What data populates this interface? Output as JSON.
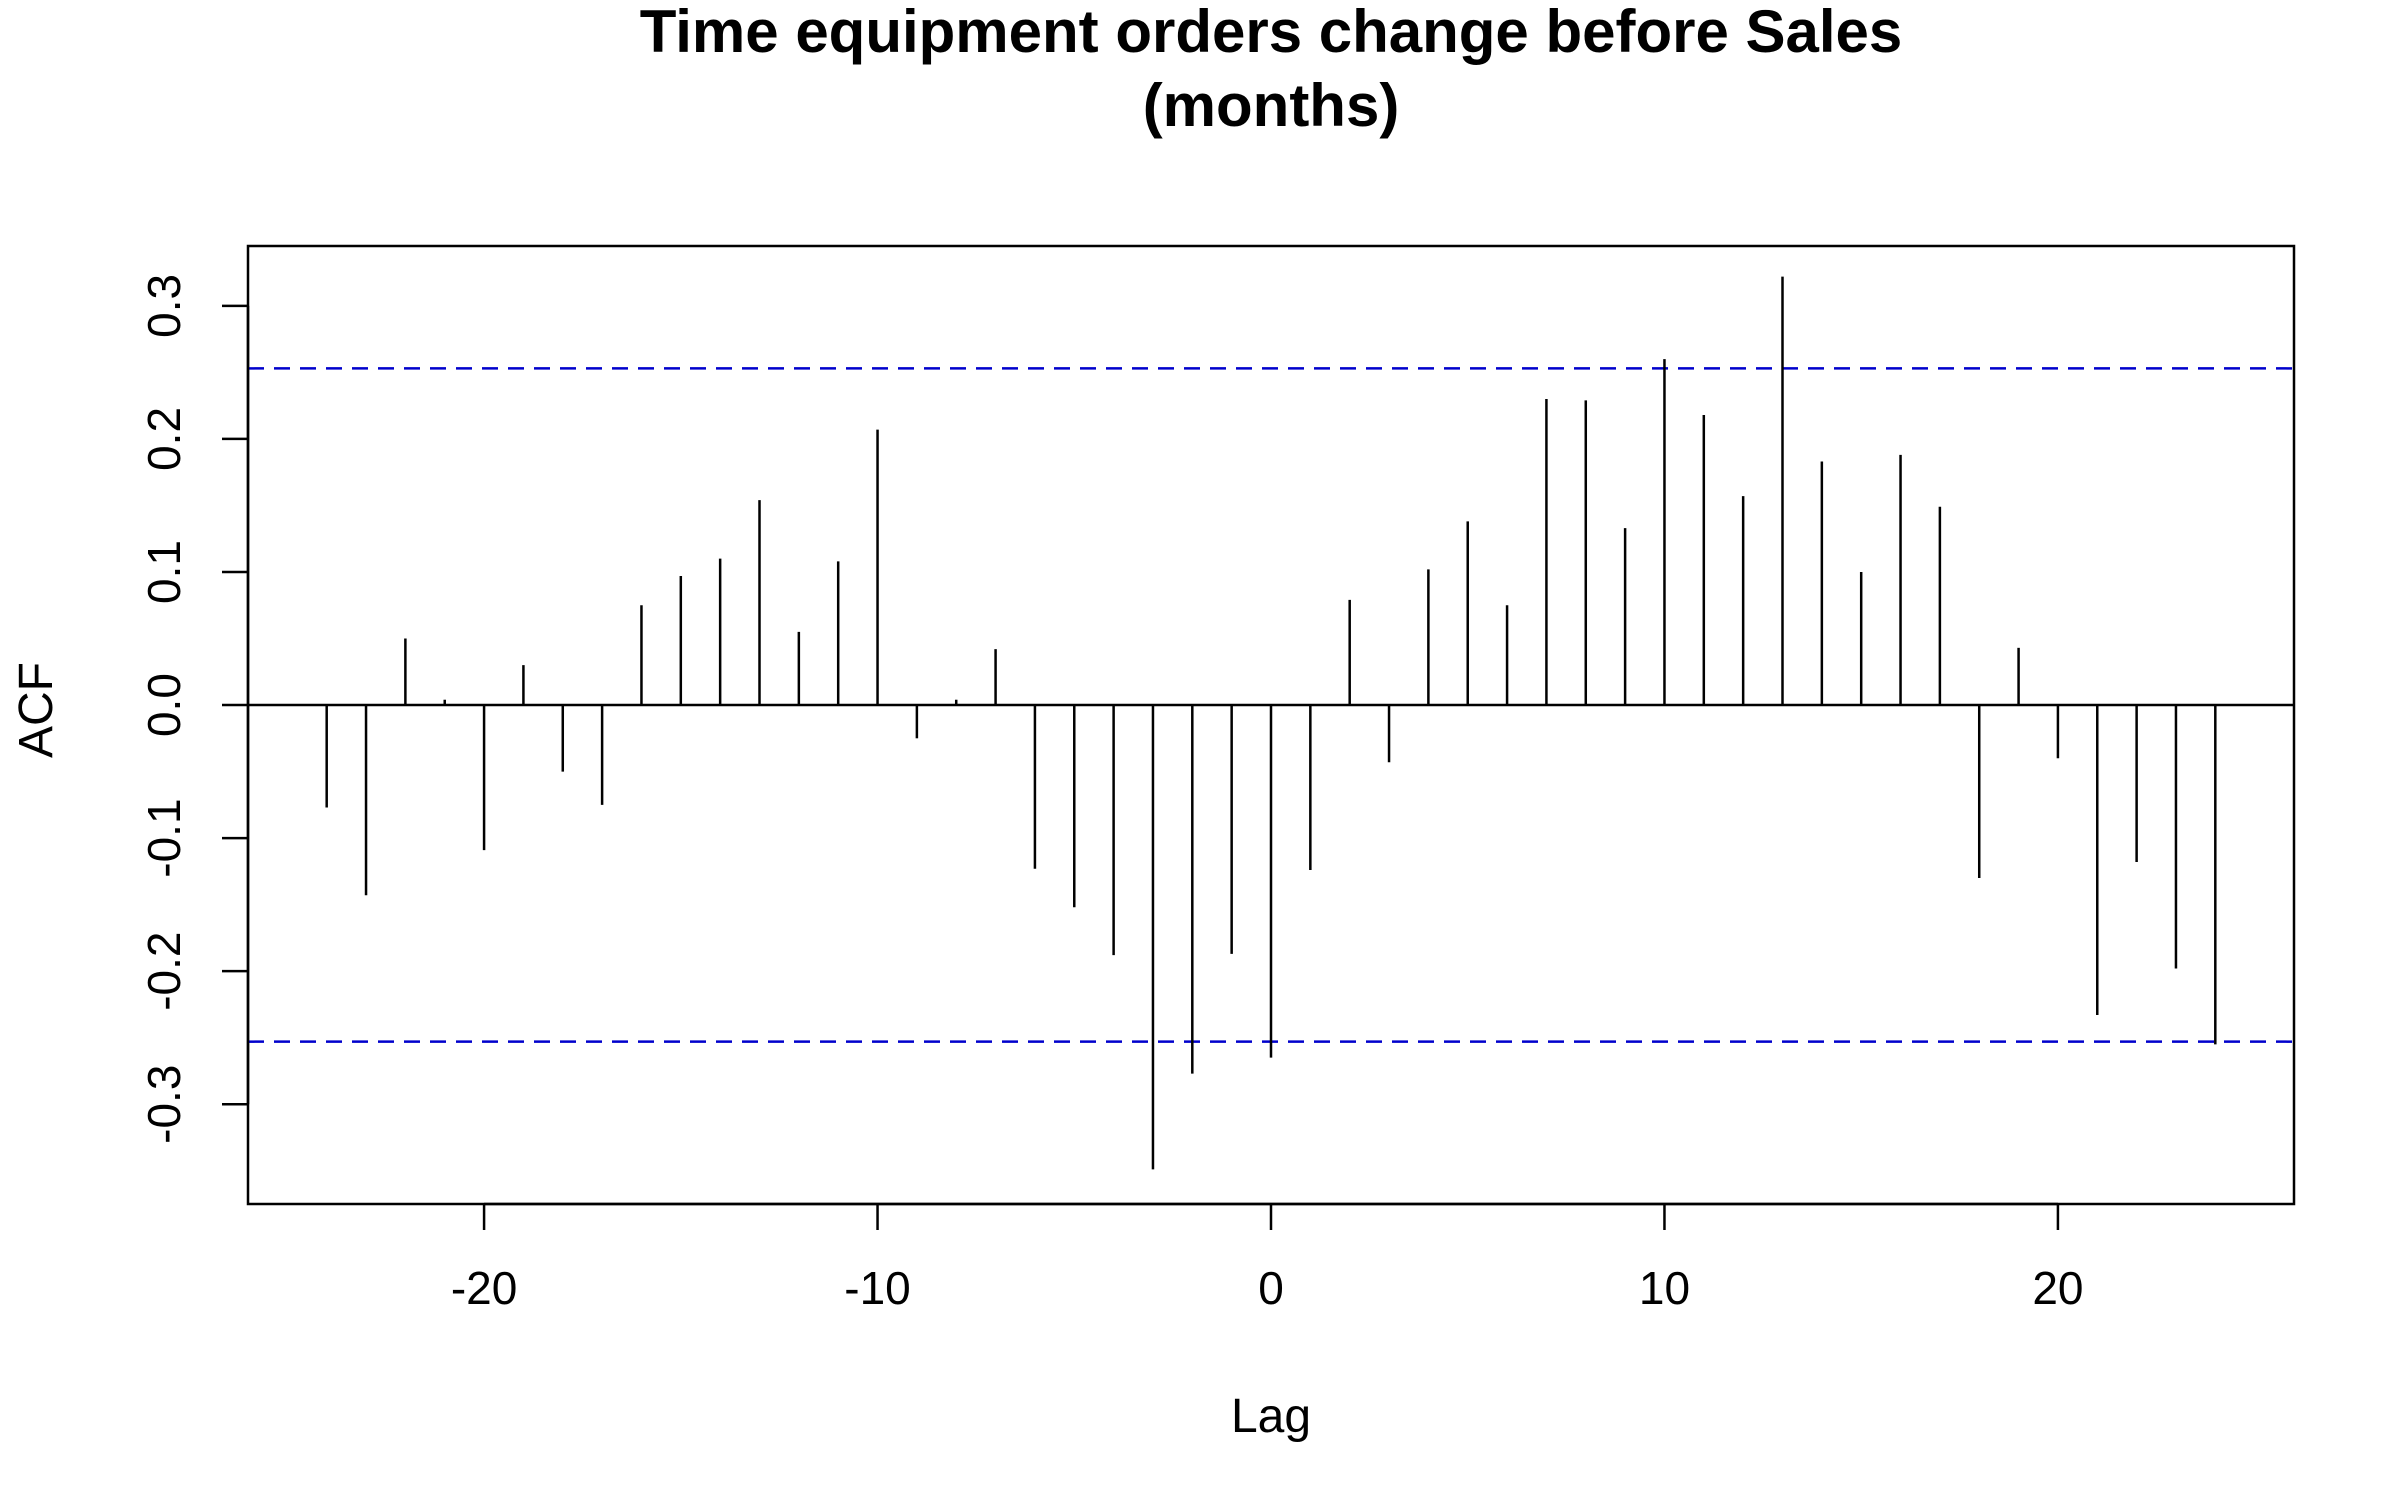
{
  "chart_data": {
    "type": "bar",
    "title_line1": "Time equipment orders change before Sales",
    "title_line2": "(months)",
    "xlabel": "Lag",
    "ylabel": "ACF",
    "xlim": [
      -26,
      26
    ],
    "ylim": [
      -0.375,
      0.345
    ],
    "xticks": [
      -20,
      -10,
      0,
      10,
      20
    ],
    "xtick_labels": [
      "-20",
      "-10",
      "0",
      "10",
      "20"
    ],
    "yticks": [
      -0.3,
      -0.2,
      -0.1,
      0.0,
      0.1,
      0.2,
      0.3
    ],
    "ytick_labels": [
      "-0.3",
      "-0.2",
      "-0.1",
      "0.0",
      "0.1",
      "0.2",
      "0.3"
    ],
    "confidence_band": 0.253,
    "confidence_color": "#0000cc",
    "line_color": "#000000",
    "lags": [
      -24,
      -23,
      -22,
      -21,
      -20,
      -19,
      -18,
      -17,
      -16,
      -15,
      -14,
      -13,
      -12,
      -11,
      -10,
      -9,
      -8,
      -7,
      -6,
      -5,
      -4,
      -3,
      -2,
      -1,
      0,
      1,
      2,
      3,
      4,
      5,
      6,
      7,
      8,
      9,
      10,
      11,
      12,
      13,
      14,
      15,
      16,
      17,
      18,
      19,
      20,
      21,
      22,
      23,
      24
    ],
    "values": [
      -0.077,
      -0.143,
      0.05,
      0.004,
      -0.109,
      0.03,
      -0.05,
      -0.075,
      0.075,
      0.097,
      0.11,
      0.154,
      0.055,
      0.108,
      0.207,
      -0.025,
      0.004,
      0.042,
      -0.123,
      -0.152,
      -0.188,
      -0.349,
      -0.277,
      -0.187,
      -0.265,
      -0.124,
      0.079,
      -0.043,
      0.102,
      0.138,
      0.075,
      0.23,
      0.229,
      0.133,
      0.26,
      0.218,
      0.157,
      0.322,
      0.183,
      0.1,
      0.188,
      0.149,
      -0.13,
      0.043,
      -0.04,
      -0.233,
      -0.118,
      -0.198,
      -0.255
    ]
  }
}
